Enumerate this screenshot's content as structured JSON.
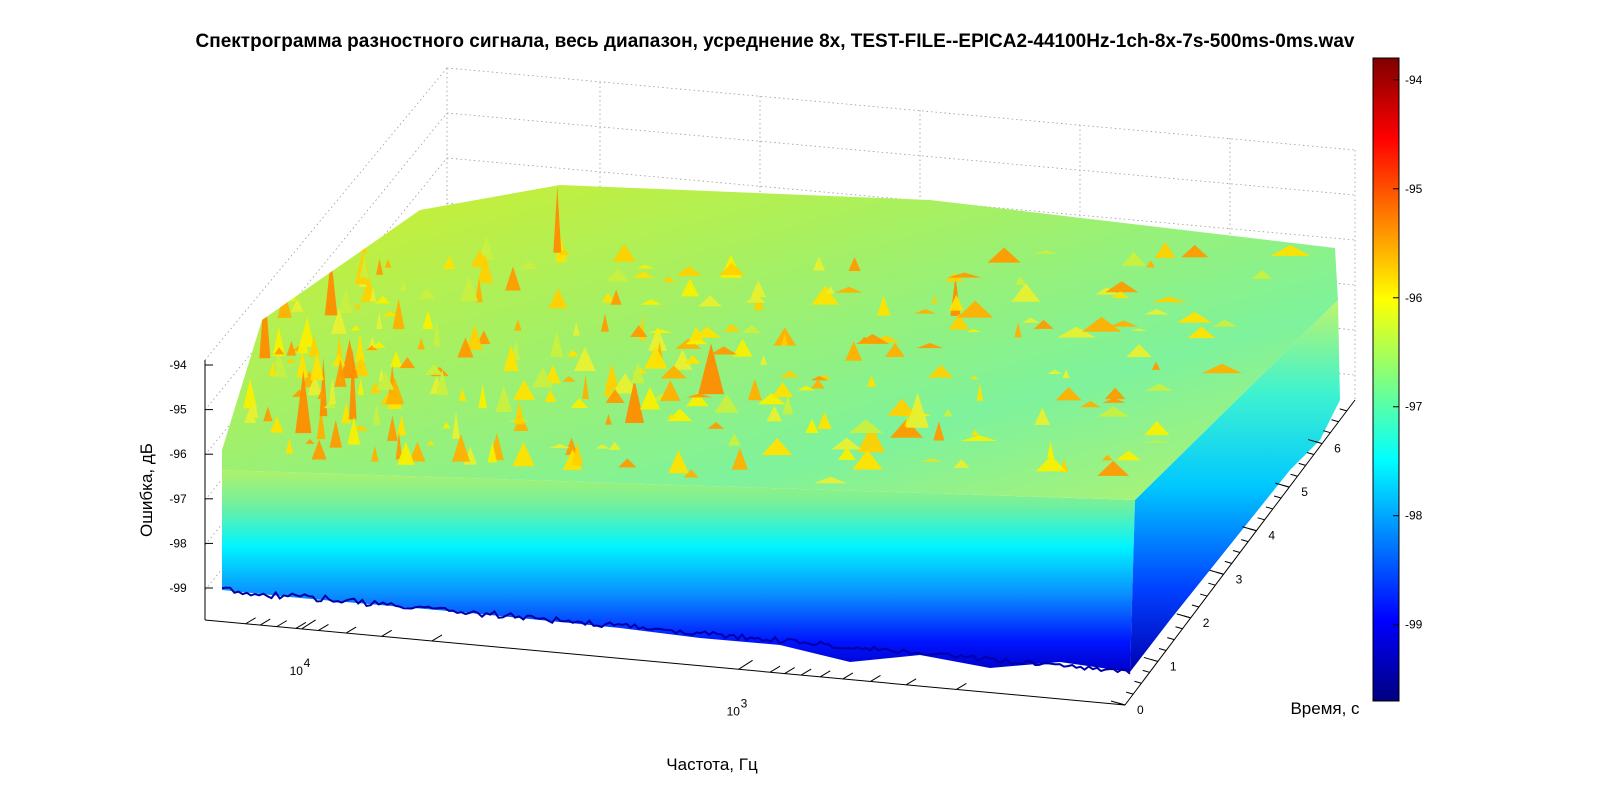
{
  "chart_data": {
    "type": "surface-3d",
    "title": "Спектрограмма разностного сигнала, весь диапазон, усреднение 8x, TEST-FILE--EPICA2-44100Hz-1ch-8x-7s-500ms-0ms.wav",
    "xlabel": "Частота, Гц",
    "ylabel": "Время, с",
    "zlabel": "Ошибка, дБ",
    "x_scale": "log",
    "x_ticks": [
      {
        "value": 10000,
        "label": "10",
        "exp": "4"
      },
      {
        "value": 1000,
        "label": "10",
        "exp": "3"
      }
    ],
    "y_ticks": [
      0,
      1,
      2,
      3,
      4,
      5,
      6
    ],
    "ylim": [
      0,
      7
    ],
    "z_ticks": [
      -94,
      -95,
      -96,
      -97,
      -98,
      -99
    ],
    "zlim": [
      -99.7,
      -93.4
    ],
    "colormap": "jet",
    "colorbar": {
      "ticks": [
        -94,
        -95,
        -96,
        -97,
        -98,
        -99
      ],
      "range": [
        -99.7,
        -93.8
      ],
      "colors": [
        "#00007f",
        "#0000ff",
        "#007fff",
        "#00ffff",
        "#7fff7f",
        "#ffff00",
        "#ff7f00",
        "#ff0000",
        "#7f0000"
      ]
    },
    "grid": true,
    "description_surface": {
      "base_level_db": -99.5,
      "typical_top_level_db": -96.5,
      "peak_level_db": -94.8,
      "high_frequency_region_density": "dense"
    }
  }
}
